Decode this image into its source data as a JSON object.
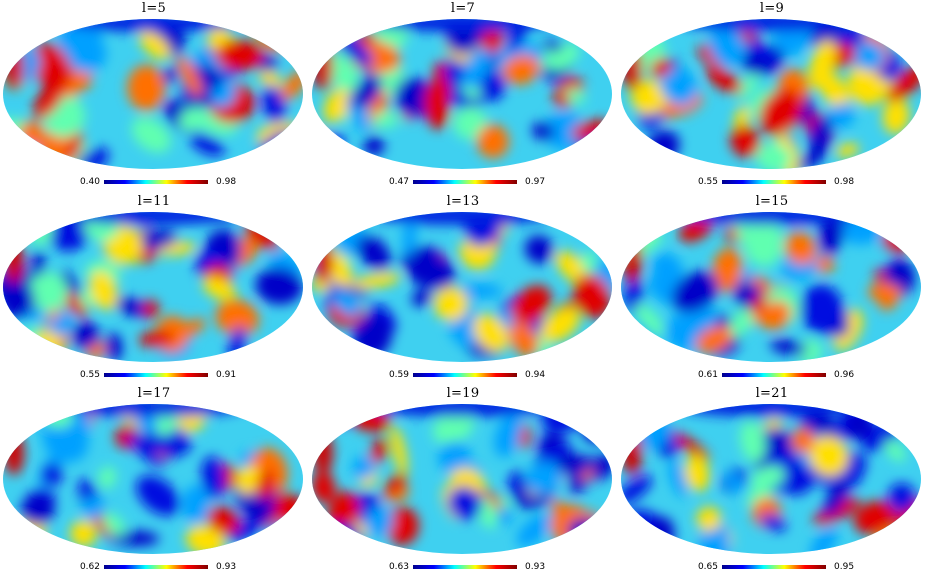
{
  "panels": [
    {
      "title": "l=5",
      "min": "0.40",
      "max": "0.98",
      "seed": 5
    },
    {
      "title": "l=7",
      "min": "0.47",
      "max": "0.97",
      "seed": 7
    },
    {
      "title": "l=9",
      "min": "0.55",
      "max": "0.98",
      "seed": 9
    },
    {
      "title": "l=11",
      "min": "0.55",
      "max": "0.91",
      "seed": 11
    },
    {
      "title": "l=13",
      "min": "0.59",
      "max": "0.94",
      "seed": 13
    },
    {
      "title": "l=15",
      "min": "0.61",
      "max": "0.96",
      "seed": 15
    },
    {
      "title": "l=17",
      "min": "0.62",
      "max": "0.93",
      "seed": 17
    },
    {
      "title": "l=19",
      "min": "0.63",
      "max": "0.93",
      "seed": 19
    },
    {
      "title": "l=21",
      "min": "0.65",
      "max": "0.95",
      "seed": 21
    }
  ],
  "colormap": [
    "#00008f",
    "#0000ff",
    "#00ffff",
    "#ffff00",
    "#ff0000",
    "#800000"
  ]
}
